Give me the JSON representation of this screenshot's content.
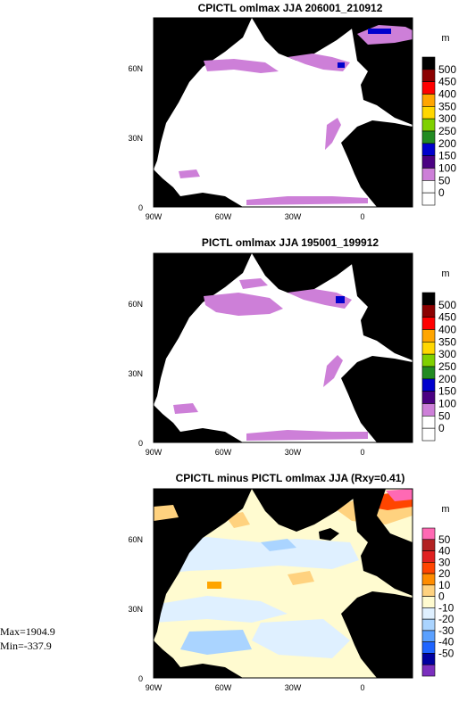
{
  "panels": [
    {
      "title": "CPICTL omlmax JJA 206001_210912",
      "unit": "m",
      "colorbar": {
        "labels": [
          "500",
          "450",
          "400",
          "350",
          "300",
          "250",
          "200",
          "150",
          "100",
          "50",
          "0"
        ],
        "colors": [
          "#000000",
          "#8b0000",
          "#ff0000",
          "#ffa500",
          "#ffd700",
          "#7fd000",
          "#228b22",
          "#0000cd",
          "#4b0082",
          "#cd7fd8",
          "#ffffff",
          "#ffffff"
        ]
      }
    },
    {
      "title": "PICTL omlmax JJA 195001_199912",
      "unit": "m",
      "colorbar": {
        "labels": [
          "500",
          "450",
          "400",
          "350",
          "300",
          "250",
          "200",
          "150",
          "100",
          "50",
          "0"
        ],
        "colors": [
          "#000000",
          "#8b0000",
          "#ff0000",
          "#ffa500",
          "#ffd700",
          "#7fd000",
          "#228b22",
          "#0000cd",
          "#4b0082",
          "#cd7fd8",
          "#ffffff",
          "#ffffff"
        ]
      }
    },
    {
      "title": "CPICTL minus PICTL omlmax JJA (Rxy=0.41)",
      "unit": "m",
      "colorbar": {
        "labels": [
          "50",
          "40",
          "30",
          "20",
          "10",
          "0",
          "-10",
          "-20",
          "-30",
          "-40",
          "-50"
        ],
        "colors": [
          "#ff69b4",
          "#b22222",
          "#e02020",
          "#ff4500",
          "#ff8c00",
          "#ffd27f",
          "#fffbd0",
          "#dff0ff",
          "#aad4ff",
          "#5aa0ff",
          "#1e64ff",
          "#0000a0",
          "#7b2fbe"
        ]
      }
    }
  ],
  "axes": {
    "x_ticks": [
      "90W",
      "60W",
      "30W",
      "0"
    ],
    "y_ticks": [
      "0",
      "30N",
      "60N"
    ]
  },
  "stats": {
    "max": "Max=1904.9",
    "min": "Min=-337.9"
  },
  "colors": {
    "land": "#000000",
    "ocean": "#ffffff"
  }
}
